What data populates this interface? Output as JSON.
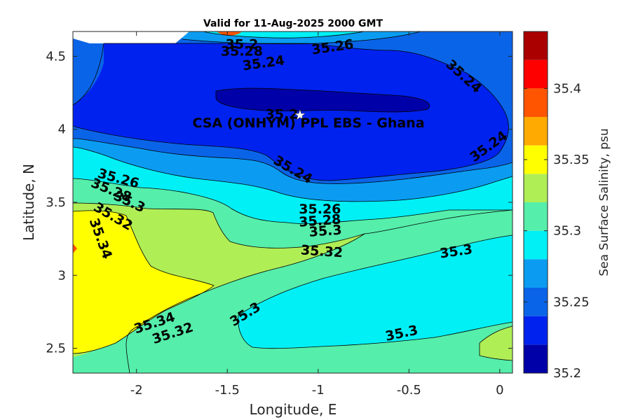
{
  "chart_data": {
    "type": "contour",
    "title": "Valid for 11-Aug-2025 2000 GMT",
    "xlabel": "Longitude, E",
    "ylabel": "Latitude, N",
    "xlim": [
      -2.35,
      0.07
    ],
    "ylim": [
      2.33,
      4.67
    ],
    "xticks": [
      -2,
      -1.5,
      -1,
      -0.5,
      0
    ],
    "xtick_labels": [
      "-2",
      "-1.5",
      "-1",
      "-0.5",
      "0"
    ],
    "yticks": [
      2.5,
      3,
      3.5,
      4,
      4.5
    ],
    "ytick_labels": [
      "2.5",
      "3",
      "3.5",
      "4",
      "4.5"
    ],
    "colorbar": {
      "label": "Sea Surface Salinity, psu",
      "range": [
        35.2,
        35.44
      ],
      "ticks": [
        35.2,
        35.25,
        35.3,
        35.35,
        35.4
      ],
      "tick_labels": [
        "35.2",
        "35.25",
        "35.3",
        "35.35",
        "35.4"
      ],
      "levels": [
        35.2,
        35.22,
        35.24,
        35.26,
        35.28,
        35.3,
        35.32,
        35.34,
        35.36,
        35.38,
        35.4,
        35.42,
        35.44
      ],
      "colors": [
        "#0000a8",
        "#0022ee",
        "#0a64e8",
        "#0b9cf2",
        "#00f0f6",
        "#55eeaa",
        "#b0ee55",
        "#ffff00",
        "#ffaa00",
        "#ff5500",
        "#ff0000",
        "#aa0000"
      ]
    },
    "site": {
      "name": "CSA (ONHYM) PPL EBS  - Ghana",
      "lon": -1.1,
      "lat": 4.1
    },
    "contour_labels": [
      {
        "text": "35.2",
        "lon": -1.42,
        "lat": 4.58,
        "angle": 0
      },
      {
        "text": "35.28",
        "lon": -1.42,
        "lat": 4.53,
        "angle": 0
      },
      {
        "text": "35.26",
        "lon": -0.92,
        "lat": 4.56,
        "angle": -8
      },
      {
        "text": "35.24",
        "lon": -1.3,
        "lat": 4.45,
        "angle": -8
      },
      {
        "text": "35.24",
        "lon": -0.2,
        "lat": 4.36,
        "angle": 42
      },
      {
        "text": "35.2",
        "lon": -1.2,
        "lat": 4.1,
        "angle": 0
      },
      {
        "text": "35.24",
        "lon": -1.14,
        "lat": 3.72,
        "angle": 30
      },
      {
        "text": "35.24",
        "lon": -0.06,
        "lat": 3.88,
        "angle": -36
      },
      {
        "text": "35.26",
        "lon": -2.1,
        "lat": 3.66,
        "angle": 15
      },
      {
        "text": "35.28",
        "lon": -2.14,
        "lat": 3.58,
        "angle": 22
      },
      {
        "text": "35.3",
        "lon": -2.04,
        "lat": 3.5,
        "angle": 25
      },
      {
        "text": "35.32",
        "lon": -2.13,
        "lat": 3.4,
        "angle": 30
      },
      {
        "text": "35.34",
        "lon": -2.2,
        "lat": 3.25,
        "angle": 70
      },
      {
        "text": "35.26",
        "lon": -0.99,
        "lat": 3.45,
        "angle": 0
      },
      {
        "text": "35.28",
        "lon": -0.99,
        "lat": 3.37,
        "angle": -4
      },
      {
        "text": "35.3",
        "lon": -0.96,
        "lat": 3.3,
        "angle": -4
      },
      {
        "text": "35.32",
        "lon": -0.98,
        "lat": 3.16,
        "angle": 4
      },
      {
        "text": "35.3",
        "lon": -0.24,
        "lat": 3.16,
        "angle": -8
      },
      {
        "text": "35.34",
        "lon": -1.9,
        "lat": 2.67,
        "angle": -18
      },
      {
        "text": "35.32",
        "lon": -1.8,
        "lat": 2.6,
        "angle": -18
      },
      {
        "text": "35.3",
        "lon": -1.4,
        "lat": 2.73,
        "angle": -32
      },
      {
        "text": "35.3",
        "lon": -0.54,
        "lat": 2.6,
        "angle": -12
      }
    ]
  }
}
